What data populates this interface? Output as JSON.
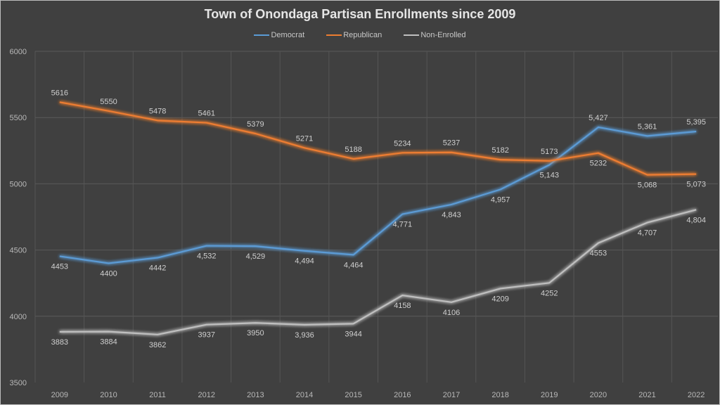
{
  "chart_data": {
    "type": "line",
    "title": "Town of Onondaga Partisan Enrollments since 2009",
    "xlabel": "",
    "ylabel": "",
    "ylim": [
      3500,
      6000
    ],
    "yticks": [
      3500,
      4000,
      4500,
      5000,
      5500,
      6000
    ],
    "ytick_labels": [
      "3500",
      "4000",
      "4500",
      "5000",
      "5500",
      "6000"
    ],
    "grid": true,
    "legend_position": "top-center",
    "categories": [
      "2009",
      "2010",
      "2011",
      "2012",
      "2013",
      "2014",
      "2015",
      "2016",
      "2017",
      "2018",
      "2019",
      "2020",
      "2021",
      "2022"
    ],
    "series": [
      {
        "name": "Democrat",
        "color": "#5b9bd5",
        "values": [
          4453,
          4400,
          4442,
          4532,
          4529,
          4494,
          4464,
          4771,
          4843,
          4957,
          5143,
          5427,
          5361,
          5395
        ],
        "labels": [
          "4453",
          "4400",
          "4442",
          "4,532",
          "4,529",
          "4,494",
          "4,464",
          "4,771",
          "4,843",
          "4,957",
          "5,143",
          "5,427",
          "5,361",
          "5,395"
        ],
        "label_pos": [
          "below",
          "below",
          "below",
          "below",
          "below",
          "below",
          "below",
          "below",
          "below",
          "below",
          "below",
          "above",
          "above",
          "above"
        ]
      },
      {
        "name": "Republican",
        "color": "#ed7d31",
        "values": [
          5616,
          5550,
          5478,
          5461,
          5379,
          5271,
          5188,
          5234,
          5237,
          5182,
          5173,
          5232,
          5068,
          5073
        ],
        "labels": [
          "5616",
          "5550",
          "5478",
          "5461",
          "5379",
          "5271",
          "5188",
          "5234",
          "5237",
          "5182",
          "5173",
          "5232",
          "5,068",
          "5,073"
        ],
        "label_pos": [
          "above",
          "above",
          "above",
          "above",
          "above",
          "above",
          "above",
          "above",
          "above",
          "above",
          "above",
          "below",
          "below",
          "below"
        ]
      },
      {
        "name": "Non-Enrolled",
        "color": "#bfbfbf",
        "values": [
          3883,
          3884,
          3862,
          3937,
          3950,
          3936,
          3944,
          4158,
          4106,
          4209,
          4252,
          4553,
          4707,
          4804
        ],
        "labels": [
          "3883",
          "3884",
          "3862",
          "3937",
          "3950",
          "3,936",
          "3944",
          "4158",
          "4106",
          "4209",
          "4252",
          "4553",
          "4,707",
          "4,804"
        ],
        "label_pos": [
          "below",
          "below",
          "below",
          "below",
          "below",
          "below",
          "below",
          "below",
          "below",
          "below",
          "below",
          "below",
          "below",
          "below"
        ]
      }
    ]
  }
}
